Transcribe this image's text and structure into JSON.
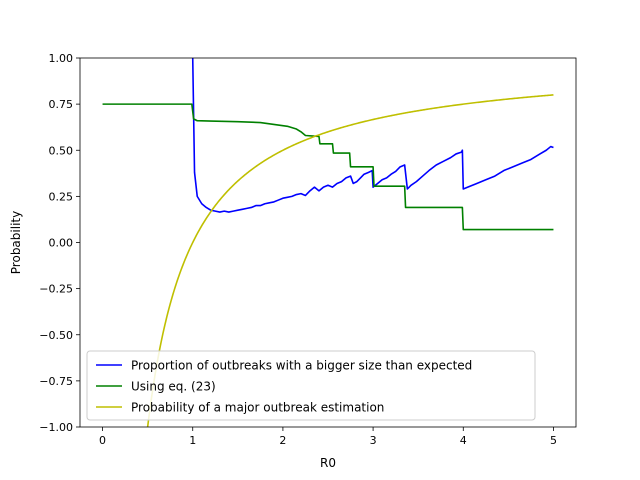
{
  "chart_data": {
    "type": "line",
    "title": "",
    "xlabel": "R0",
    "ylabel": "Probability",
    "xlim": [
      -0.25,
      5.25
    ],
    "ylim": [
      -1.0,
      1.0
    ],
    "grid": false,
    "legend_position": "lower-left",
    "x_ticks": [
      0,
      1,
      2,
      3,
      4,
      5
    ],
    "x_tick_labels": [
      "0",
      "1",
      "2",
      "3",
      "4",
      "5"
    ],
    "y_ticks": [
      -1.0,
      -0.75,
      -0.5,
      -0.25,
      0.0,
      0.25,
      0.5,
      0.75,
      1.0
    ],
    "y_tick_labels": [
      "−1.00",
      "−0.75",
      "−0.50",
      "−0.25",
      "0.00",
      "0.25",
      "0.50",
      "0.75",
      "1.00"
    ],
    "series": [
      {
        "name": "Proportion of outbreaks with a bigger size than expected",
        "color": "#0000ff",
        "points": [
          [
            1.0,
            1.0
          ],
          [
            1.02,
            0.38
          ],
          [
            1.05,
            0.25
          ],
          [
            1.1,
            0.21
          ],
          [
            1.15,
            0.19
          ],
          [
            1.2,
            0.175
          ],
          [
            1.25,
            0.17
          ],
          [
            1.3,
            0.165
          ],
          [
            1.35,
            0.17
          ],
          [
            1.4,
            0.165
          ],
          [
            1.45,
            0.17
          ],
          [
            1.5,
            0.175
          ],
          [
            1.55,
            0.18
          ],
          [
            1.6,
            0.185
          ],
          [
            1.65,
            0.19
          ],
          [
            1.7,
            0.2
          ],
          [
            1.75,
            0.2
          ],
          [
            1.8,
            0.21
          ],
          [
            1.85,
            0.215
          ],
          [
            1.9,
            0.22
          ],
          [
            1.95,
            0.23
          ],
          [
            2.0,
            0.24
          ],
          [
            2.05,
            0.245
          ],
          [
            2.1,
            0.25
          ],
          [
            2.15,
            0.26
          ],
          [
            2.2,
            0.265
          ],
          [
            2.25,
            0.255
          ],
          [
            2.3,
            0.28
          ],
          [
            2.35,
            0.3
          ],
          [
            2.4,
            0.28
          ],
          [
            2.45,
            0.3
          ],
          [
            2.5,
            0.31
          ],
          [
            2.55,
            0.3
          ],
          [
            2.6,
            0.32
          ],
          [
            2.65,
            0.33
          ],
          [
            2.7,
            0.35
          ],
          [
            2.75,
            0.36
          ],
          [
            2.78,
            0.32
          ],
          [
            2.82,
            0.33
          ],
          [
            2.86,
            0.35
          ],
          [
            2.9,
            0.37
          ],
          [
            2.95,
            0.38
          ],
          [
            2.99,
            0.39
          ],
          [
            3.0,
            0.3
          ],
          [
            3.05,
            0.32
          ],
          [
            3.1,
            0.34
          ],
          [
            3.15,
            0.35
          ],
          [
            3.2,
            0.37
          ],
          [
            3.25,
            0.385
          ],
          [
            3.3,
            0.41
          ],
          [
            3.35,
            0.42
          ],
          [
            3.38,
            0.29
          ],
          [
            3.42,
            0.31
          ],
          [
            3.48,
            0.33
          ],
          [
            3.55,
            0.36
          ],
          [
            3.62,
            0.39
          ],
          [
            3.7,
            0.42
          ],
          [
            3.78,
            0.44
          ],
          [
            3.86,
            0.46
          ],
          [
            3.92,
            0.48
          ],
          [
            3.98,
            0.49
          ],
          [
            3.99,
            0.5
          ],
          [
            4.0,
            0.29
          ],
          [
            4.05,
            0.3
          ],
          [
            4.15,
            0.32
          ],
          [
            4.25,
            0.34
          ],
          [
            4.35,
            0.36
          ],
          [
            4.45,
            0.39
          ],
          [
            4.55,
            0.41
          ],
          [
            4.65,
            0.43
          ],
          [
            4.75,
            0.45
          ],
          [
            4.85,
            0.48
          ],
          [
            4.92,
            0.5
          ],
          [
            4.97,
            0.52
          ],
          [
            5.0,
            0.515
          ]
        ]
      },
      {
        "name": "Using eq. (23)",
        "color": "#008000",
        "points": [
          [
            0.0,
            0.75
          ],
          [
            0.99,
            0.75
          ],
          [
            1.01,
            0.67
          ],
          [
            1.05,
            0.66
          ],
          [
            1.2,
            0.658
          ],
          [
            1.5,
            0.655
          ],
          [
            1.75,
            0.65
          ],
          [
            1.9,
            0.64
          ],
          [
            2.05,
            0.63
          ],
          [
            2.15,
            0.615
          ],
          [
            2.2,
            0.6
          ],
          [
            2.25,
            0.58
          ],
          [
            2.4,
            0.575
          ],
          [
            2.41,
            0.535
          ],
          [
            2.55,
            0.535
          ],
          [
            2.56,
            0.485
          ],
          [
            2.74,
            0.485
          ],
          [
            2.75,
            0.41
          ],
          [
            3.0,
            0.41
          ],
          [
            3.01,
            0.305
          ],
          [
            3.35,
            0.305
          ],
          [
            3.36,
            0.19
          ],
          [
            3.99,
            0.19
          ],
          [
            4.0,
            0.07
          ],
          [
            5.0,
            0.07
          ]
        ]
      },
      {
        "name": "Probability of a major outbreak estimation",
        "color": "#bfbf00",
        "formula": "1 - 1/R0",
        "x_start": 0.5,
        "x_end": 5.0
      }
    ]
  }
}
